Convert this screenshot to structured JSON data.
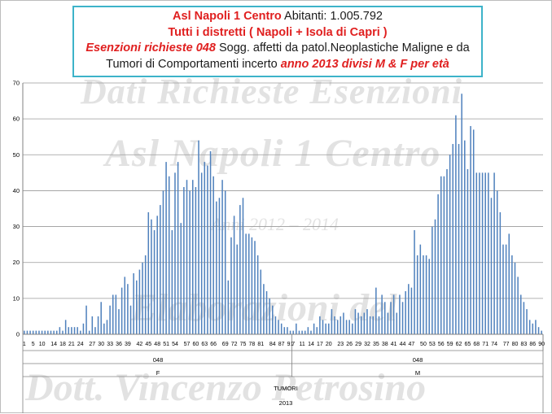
{
  "title_box": {
    "line1_a": "Asl Napoli 1 Centro",
    "line1_b": " Abitanti: 1.005.792",
    "line2": "Tutti i distretti ( Napoli + Isola di Capri )",
    "line3_a": "Esenzioni richieste 048",
    "line3_b": " Sogg. affetti da patol.Neoplastiche Maligne e da",
    "line4_a": "Tumori di Comportamenti incerto ",
    "line4_b": " anno 2013 divisi M & F per età"
  },
  "watermark": {
    "line1": "Dati Richieste Esenzioni",
    "line2": "Asl Napoli 1 Centro",
    "line3": "Anni 2012 – 2014",
    "line4": "Elaborazioni del",
    "line5": "Dott. Vincenzo Petrosino"
  },
  "axis_labels": {
    "group_code_f": "048",
    "group_code_m": "048",
    "sex_f": "F",
    "sex_m": "M",
    "category": "TUMORI",
    "year": "2013"
  },
  "chart_data": {
    "type": "bar",
    "ylim": [
      0,
      70
    ],
    "yticks": [
      0,
      10,
      20,
      30,
      40,
      50,
      60,
      70
    ],
    "grid": true,
    "legend": "none",
    "bar_color": "#4f81bd",
    "groups": [
      {
        "code": "048",
        "sex": "F",
        "tick_labels": [
          "1",
          "5",
          "10",
          "14",
          "18",
          "21",
          "24",
          "27",
          "30",
          "33",
          "36",
          "39",
          "42",
          "45",
          "48",
          "51",
          "54",
          "57",
          "60",
          "63",
          "66",
          "69",
          "72",
          "75",
          "78",
          "81",
          "84",
          "87",
          "91"
        ],
        "values": [
          1,
          1,
          1,
          1,
          1,
          1,
          1,
          1,
          1,
          1,
          1,
          1,
          2,
          1,
          4,
          2,
          2,
          2,
          2,
          1,
          3,
          8,
          1,
          5,
          2,
          5,
          9,
          3,
          4,
          8,
          11,
          11,
          7,
          13,
          16,
          14,
          8,
          17,
          15,
          18,
          20,
          22,
          34,
          32,
          29,
          33,
          36,
          40,
          48,
          44,
          29,
          45,
          48,
          31,
          41,
          43,
          40,
          43,
          41,
          54,
          45,
          48,
          47,
          51,
          44,
          37,
          38,
          43,
          40,
          15,
          27,
          33,
          25,
          36,
          38,
          28,
          28,
          27,
          26,
          22,
          18,
          14,
          12,
          10,
          8,
          5,
          4,
          3,
          2,
          2,
          1
        ]
      },
      {
        "code": "048",
        "sex": "M",
        "tick_labels": [
          "7",
          "11",
          "14",
          "17",
          "20",
          "23",
          "26",
          "29",
          "32",
          "35",
          "38",
          "41",
          "44",
          "47",
          "50",
          "53",
          "56",
          "59",
          "62",
          "65",
          "68",
          "71",
          "74",
          "77",
          "80",
          "83",
          "86",
          "90"
        ],
        "values": [
          1,
          3,
          1,
          1,
          1,
          2,
          1,
          3,
          2,
          5,
          4,
          3,
          3,
          7,
          5,
          4,
          5,
          6,
          4,
          4,
          3,
          7,
          6,
          5,
          6,
          7,
          5,
          5,
          13,
          5,
          11,
          9,
          6,
          9,
          11,
          6,
          11,
          9,
          12,
          14,
          13,
          29,
          22,
          25,
          22,
          22,
          21,
          30,
          32,
          39,
          44,
          44,
          46,
          50,
          53,
          61,
          53,
          67,
          54,
          46,
          58,
          57,
          45,
          45,
          45,
          45,
          45,
          38,
          45,
          40,
          34,
          25,
          25,
          28,
          22,
          20,
          16,
          11,
          9,
          7,
          4,
          3,
          4,
          2,
          1
        ]
      }
    ]
  }
}
